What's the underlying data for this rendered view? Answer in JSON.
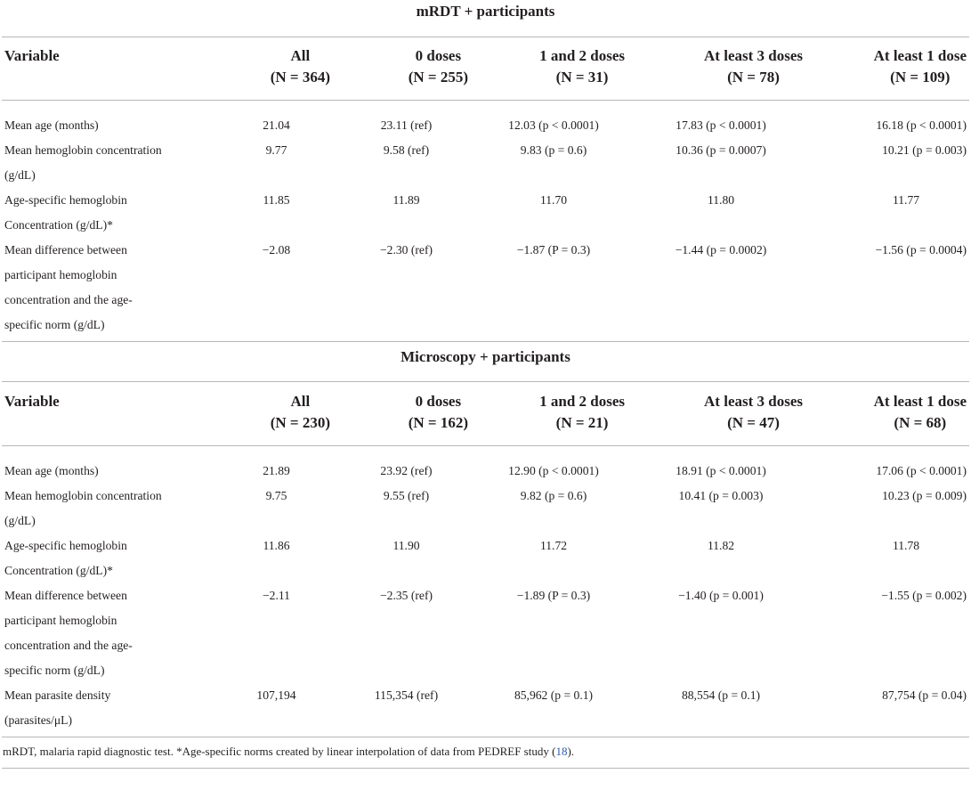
{
  "sections": [
    {
      "title": "mRDT + participants",
      "header": {
        "variable": "Variable",
        "columns": [
          {
            "label": "All",
            "n": "(N = 364)"
          },
          {
            "label": "0 doses",
            "n": "(N = 255)"
          },
          {
            "label": "1 and 2 doses",
            "n": "(N = 31)"
          },
          {
            "label": "At least 3 doses",
            "n": "(N = 78)"
          },
          {
            "label": "At least 1 dose",
            "n": "(N = 109)"
          }
        ]
      },
      "rows": [
        {
          "label": "Mean age (months)",
          "values": [
            "21.04",
            "23.11 (ref)",
            "12.03 (p < 0.0001)",
            "17.83 (p < 0.0001)",
            "16.18 (p < 0.0001)"
          ]
        },
        {
          "label": "Mean hemoglobin concentration (g/dL)",
          "values": [
            "9.77",
            "9.58 (ref)",
            "9.83 (p = 0.6)",
            "10.36 (p = 0.0007)",
            "10.21 (p = 0.003)"
          ]
        },
        {
          "label": "Age-specific hemoglobin Concentration (g/dL)*",
          "values": [
            "11.85",
            "11.89",
            "11.70",
            "11.80",
            "11.77"
          ]
        },
        {
          "label": "Mean difference between participant hemoglobin concentration and the age-specific norm (g/dL)",
          "values": [
            "−2.08",
            "−2.30 (ref)",
            "−1.87 (P = 0.3)",
            "−1.44 (p = 0.0002)",
            "−1.56 (p = 0.0004)"
          ]
        }
      ]
    },
    {
      "title": "Microscopy + participants",
      "header": {
        "variable": "Variable",
        "columns": [
          {
            "label": "All",
            "n": "(N = 230)"
          },
          {
            "label": "0 doses",
            "n": "(N = 162)"
          },
          {
            "label": "1 and 2 doses",
            "n": "(N = 21)"
          },
          {
            "label": "At least 3 doses",
            "n": "(N = 47)"
          },
          {
            "label": "At least 1 dose",
            "n": "(N = 68)"
          }
        ]
      },
      "rows": [
        {
          "label": "Mean age (months)",
          "values": [
            "21.89",
            "23.92 (ref)",
            "12.90 (p < 0.0001)",
            "18.91 (p < 0.0001)",
            "17.06 (p < 0.0001)"
          ]
        },
        {
          "label": "Mean hemoglobin concentration (g/dL)",
          "values": [
            "9.75",
            "9.55 (ref)",
            "9.82 (p = 0.6)",
            "10.41 (p = 0.003)",
            "10.23 (p = 0.009)"
          ]
        },
        {
          "label": "Age-specific hemoglobin Concentration (g/dL)*",
          "values": [
            "11.86",
            "11.90",
            "11.72",
            "11.82",
            "11.78"
          ]
        },
        {
          "label": "Mean difference between participant hemoglobin concentration and the age-specific norm (g/dL)",
          "values": [
            "−2.11",
            "−2.35 (ref)",
            "−1.89 (P = 0.3)",
            "−1.40 (p = 0.001)",
            "−1.55 (p = 0.002)"
          ]
        },
        {
          "label": "Mean parasite density (parasites/μL)",
          "values": [
            "107,194",
            "115,354 (ref)",
            "85,962 (p = 0.1)",
            "88,554 (p = 0.1)",
            "87,754 (p = 0.04)"
          ]
        }
      ]
    }
  ],
  "footnote": {
    "text": "mRDT, malaria rapid diagnostic test. *Age-specific norms created by linear interpolation of data from PEDREF study (",
    "ref": "18",
    "tail": ")."
  }
}
